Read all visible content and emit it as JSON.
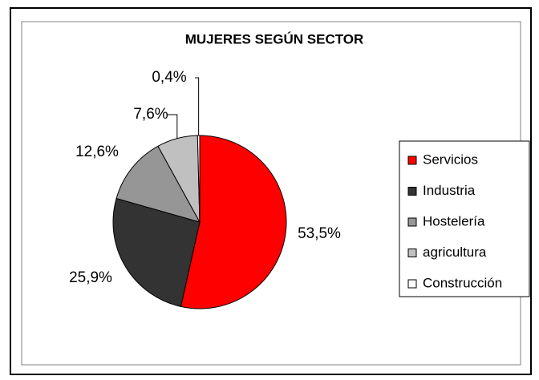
{
  "chart_data": {
    "type": "pie",
    "title": "MUJERES SEGÚN SECTOR",
    "categories": [
      "Servicios",
      "Industria",
      "Hostelería",
      "agricultura",
      "Construcción"
    ],
    "values": [
      53.5,
      25.9,
      12.6,
      7.6,
      0.4
    ],
    "value_labels": [
      "53,5%",
      "25,9%",
      "12,6%",
      "7,6%",
      "0,4%"
    ],
    "colors": [
      "#ff0000",
      "#333333",
      "#969696",
      "#c0c0c0",
      "#ffffff"
    ],
    "legend": "right"
  }
}
